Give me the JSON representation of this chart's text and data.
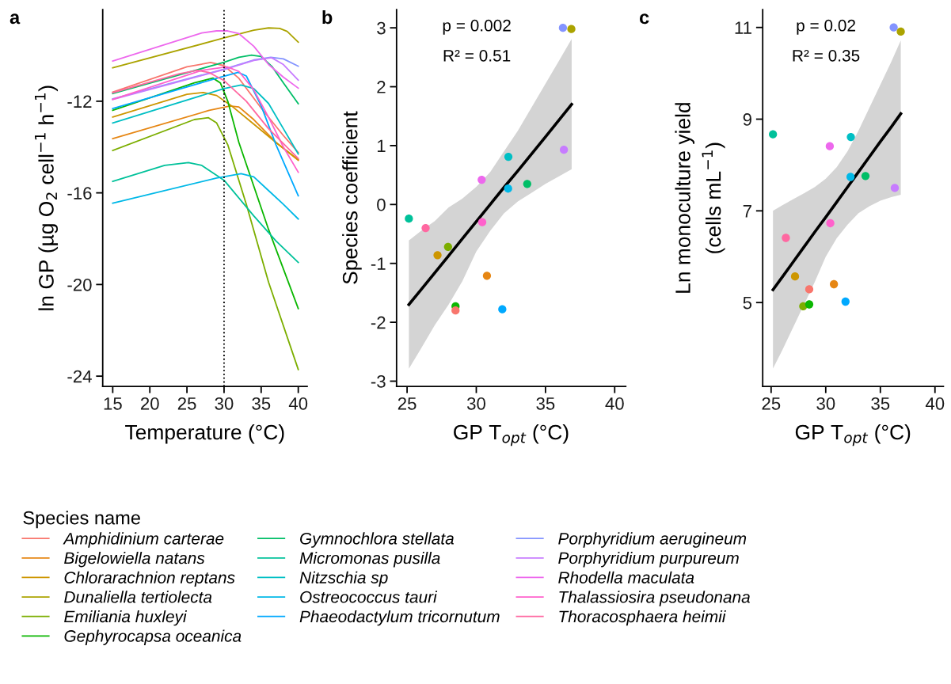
{
  "chart_data": [
    {
      "type": "line",
      "title": "a",
      "xlabel": "Temperature (°C)",
      "ylabel": "ln GP (µg O$_{2}$ cell$^{−1}$ h$^{−1}$)",
      "legend_title": "Species name",
      "legend": "bottom",
      "line_style": "solid",
      "marker": "none",
      "grid": false,
      "xlim": [
        13.65,
        41.2
      ],
      "ylim": [
        -24.45,
        -8.0
      ],
      "xticks": [
        15,
        20,
        25,
        30,
        35,
        40
      ],
      "yticks": [
        -12,
        -16,
        -20,
        -24
      ],
      "ref_lines": [
        {
          "axis": "x",
          "value": 30,
          "line_style": "dotted",
          "color": "#000000"
        }
      ],
      "series": [
        {
          "name": "Amphidinium carterae",
          "color": "#F8766D",
          "x": [
            15,
            25,
            28.2,
            30,
            32,
            35,
            38,
            40
          ],
          "values": [
            -11.6,
            -10.5,
            -10.31,
            -10.45,
            -11.0,
            -12.3,
            -13.5,
            -14.24
          ]
        },
        {
          "name": "Bigelowiella natans",
          "color": "#E68613",
          "x": [
            15,
            28,
            30.8,
            32,
            34,
            37,
            40
          ],
          "values": [
            -13.63,
            -12.4,
            -12.21,
            -12.25,
            -12.8,
            -13.8,
            -14.58
          ]
        },
        {
          "name": "Chlorarachnion reptans",
          "color": "#CD9600",
          "x": [
            15,
            25,
            27.2,
            29,
            31,
            34,
            37,
            40
          ],
          "values": [
            -12.69,
            -11.7,
            -11.62,
            -11.75,
            -12.2,
            -13.0,
            -13.8,
            -14.55
          ]
        },
        {
          "name": "Dunaliella tertiolecta",
          "color": "#ABA300",
          "x": [
            15,
            30,
            34,
            36,
            37.5,
            38.5,
            40
          ],
          "values": [
            -10.54,
            -9.24,
            -8.9,
            -8.8,
            -8.82,
            -8.95,
            -9.42
          ]
        },
        {
          "name": "Emiliania huxleyi",
          "color": "#7CAE00",
          "x": [
            15,
            26,
            27.9,
            29,
            30.5,
            33,
            36,
            40
          ],
          "values": [
            -14.15,
            -12.8,
            -12.72,
            -12.95,
            -13.9,
            -16.5,
            -19.9,
            -23.71
          ]
        },
        {
          "name": "Gephyrocapsa oceanica",
          "color": "#0CB702",
          "x": [
            15,
            26,
            28.5,
            29.5,
            30.5,
            32,
            36,
            40
          ],
          "values": [
            -12.4,
            -11.2,
            -10.99,
            -11.2,
            -12.0,
            -13.8,
            -17.6,
            -21.05
          ]
        },
        {
          "name": "Gymnochlora stellata",
          "color": "#00BE67",
          "x": [
            15,
            30,
            32,
            33.7,
            35,
            36.5,
            38,
            40
          ],
          "values": [
            -11.66,
            -10.3,
            -10.08,
            -9.99,
            -10.05,
            -10.5,
            -11.2,
            -12.11
          ]
        },
        {
          "name": "Micromonas pusilla",
          "color": "#00C19A",
          "x": [
            15,
            22,
            25.2,
            27,
            30,
            34,
            37,
            40
          ],
          "values": [
            -15.5,
            -14.8,
            -14.68,
            -14.8,
            -15.45,
            -17.0,
            -18.1,
            -19.04
          ]
        },
        {
          "name": "Nitzschia sp",
          "color": "#00BFC4",
          "x": [
            15,
            30,
            32.3,
            34,
            36,
            38,
            40
          ],
          "values": [
            -12.95,
            -11.45,
            -11.29,
            -11.45,
            -12.1,
            -13.2,
            -14.3
          ]
        },
        {
          "name": "Ostreococcus tauri",
          "color": "#00B8E7",
          "x": [
            15,
            29,
            32.3,
            34,
            36,
            38,
            40
          ],
          "values": [
            -16.45,
            -15.35,
            -15.16,
            -15.3,
            -15.9,
            -16.5,
            -17.14
          ]
        },
        {
          "name": "Phaeodactylum tricornutum",
          "color": "#00A9FF",
          "x": [
            15,
            29,
            31.9,
            33,
            35,
            37,
            40
          ],
          "values": [
            -12.32,
            -11.0,
            -10.74,
            -10.9,
            -12.2,
            -13.9,
            -16.13
          ]
        },
        {
          "name": "Porphyridium aerugineum",
          "color": "#8494FF",
          "x": [
            15,
            30,
            34,
            36.3,
            38,
            40
          ],
          "values": [
            -11.9,
            -10.6,
            -10.2,
            -10.08,
            -10.15,
            -10.47
          ]
        },
        {
          "name": "Porphyridium purpureum",
          "color": "#C77CFF",
          "x": [
            15,
            30,
            34,
            36.4,
            38,
            40
          ],
          "values": [
            -11.92,
            -10.62,
            -10.22,
            -10.1,
            -10.4,
            -11.08
          ]
        },
        {
          "name": "Rhodella maculata",
          "color": "#ED68ED",
          "x": [
            15,
            27,
            29,
            30.5,
            32,
            34,
            36,
            38,
            40
          ],
          "values": [
            -10.25,
            -9.02,
            -8.93,
            -8.93,
            -9.05,
            -9.6,
            -10.4,
            -10.95,
            -11.43
          ]
        },
        {
          "name": "Thalassiosira pseudonana",
          "color": "#FF61CC",
          "x": [
            15,
            27,
            30.4,
            32,
            34,
            36,
            38,
            40
          ],
          "values": [
            -11.92,
            -10.65,
            -10.5,
            -10.7,
            -11.5,
            -12.7,
            -14.0,
            -15.1
          ]
        },
        {
          "name": "Thoracosphaera heimii",
          "color": "#FF68A1",
          "x": [
            15,
            24,
            26.4,
            28,
            30,
            33,
            36,
            40
          ],
          "values": [
            -11.63,
            -10.8,
            -10.65,
            -10.75,
            -11.1,
            -12.0,
            -13.2,
            -14.5
          ]
        }
      ]
    },
    {
      "type": "scatter",
      "title": "b",
      "xlabel": "GP T$_{opt}$ (°C)",
      "ylabel": "Species coefficient",
      "grid": false,
      "xlim": [
        24.24,
        40.8
      ],
      "ylim": [
        -3.09,
        3.31
      ],
      "xticks": [
        25,
        30,
        35,
        40
      ],
      "yticks": [
        -3,
        -2,
        -1,
        0,
        1,
        2,
        3
      ],
      "annotations": [
        "p = 0.002",
        "R² = 0.51"
      ],
      "series": [
        {
          "type": "scatter",
          "marker": "circle",
          "x": [
            25.13,
            26.34,
            27.2,
            27.96,
            28.5,
            28.5,
            30.39,
            30.43,
            30.77,
            31.88,
            32.32,
            32.3,
            33.68,
            36.26,
            36.33,
            36.87
          ],
          "values": [
            -0.24,
            -0.4,
            -0.86,
            -0.72,
            -1.73,
            -1.8,
            0.42,
            -0.3,
            -1.21,
            -1.78,
            0.81,
            0.27,
            0.35,
            3.0,
            0.93,
            2.98
          ],
          "colors": [
            "#00C19A",
            "#FF68A1",
            "#CD9600",
            "#7CAE00",
            "#0CB702",
            "#F8766D",
            "#ED68ED",
            "#FF61CC",
            "#E68613",
            "#00A9FF",
            "#00BFC4",
            "#00B8E7",
            "#00BE67",
            "#8494FF",
            "#C77CFF",
            "#ABA300"
          ]
        },
        {
          "type": "line",
          "color": "#000000",
          "x": [
            25.13,
            26,
            27,
            28,
            29,
            30,
            31,
            32,
            33,
            34,
            35,
            36,
            36.89
          ],
          "values": [
            -1.7,
            -1.45,
            -1.16,
            -0.87,
            -0.58,
            -0.29,
            0.0,
            0.29,
            0.57,
            0.86,
            1.15,
            1.44,
            1.7
          ],
          "upper": [
            -0.61,
            -0.45,
            -0.28,
            -0.05,
            0.1,
            0.3,
            0.55,
            0.9,
            1.25,
            1.65,
            2.05,
            2.45,
            2.81
          ],
          "lower": [
            -2.79,
            -2.45,
            -2.05,
            -1.7,
            -1.3,
            -0.8,
            -0.45,
            -0.15,
            0.05,
            0.2,
            0.35,
            0.48,
            0.6
          ]
        }
      ]
    },
    {
      "type": "scatter",
      "title": "c",
      "xlabel": "GP T$_{opt}$ (°C)",
      "ylabel": "Ln monoculture yield\n(cells mL$^{−1}$)",
      "grid": false,
      "xlim": [
        24.23,
        40.77
      ],
      "ylim": [
        3.17,
        11.39
      ],
      "xticks": [
        25,
        30,
        35,
        40
      ],
      "yticks": [
        5,
        7,
        9,
        11
      ],
      "annotations": [
        "p = 0.02",
        "R² = 0.35"
      ],
      "series": [
        {
          "type": "scatter",
          "marker": "circle",
          "x": [
            25.17,
            26.35,
            27.19,
            27.94,
            28.49,
            28.49,
            30.37,
            30.42,
            30.75,
            31.81,
            32.3,
            32.27,
            33.64,
            36.22,
            36.32,
            36.87
          ],
          "values": [
            8.67,
            6.41,
            5.57,
            4.92,
            4.96,
            5.29,
            8.41,
            6.73,
            5.4,
            5.02,
            8.61,
            7.74,
            7.76,
            11.0,
            7.5,
            10.91
          ],
          "colors": [
            "#00C19A",
            "#FF68A1",
            "#CD9600",
            "#7CAE00",
            "#0CB702",
            "#F8766D",
            "#ED68ED",
            "#FF61CC",
            "#E68613",
            "#00A9FF",
            "#00BFC4",
            "#00B8E7",
            "#00BE67",
            "#8494FF",
            "#C77CFF",
            "#ABA300"
          ]
        },
        {
          "type": "line",
          "color": "#000000",
          "x": [
            25.17,
            26,
            27,
            28,
            29,
            30,
            31,
            32,
            33,
            34,
            35,
            36,
            36.87
          ],
          "values": [
            5.28,
            5.55,
            5.88,
            6.21,
            6.54,
            6.86,
            7.19,
            7.52,
            7.85,
            8.18,
            8.51,
            8.83,
            9.12
          ],
          "upper": [
            7.0,
            7.12,
            7.25,
            7.38,
            7.52,
            7.7,
            7.95,
            8.3,
            8.75,
            9.25,
            9.75,
            10.25,
            10.72
          ],
          "lower": [
            3.56,
            3.95,
            4.45,
            4.95,
            5.45,
            6.0,
            6.4,
            6.7,
            6.95,
            7.1,
            7.22,
            7.3,
            7.35
          ]
        }
      ]
    }
  ]
}
